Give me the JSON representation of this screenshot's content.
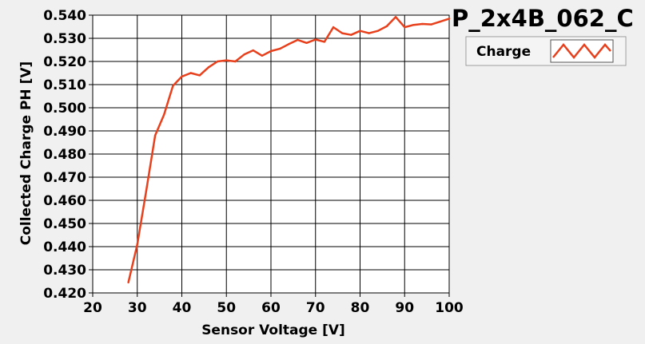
{
  "chart_data": {
    "type": "line",
    "title": "P_2x4B_062_C",
    "xlabel": "Sensor Voltage [V]",
    "ylabel": "Collected Charge PH [V]",
    "xlim": [
      20,
      100
    ],
    "ylim": [
      0.42,
      0.54
    ],
    "xticks": [
      "20",
      "30",
      "40",
      "50",
      "60",
      "70",
      "80",
      "90",
      "100"
    ],
    "yticks": [
      "0.420",
      "0.430",
      "0.440",
      "0.450",
      "0.460",
      "0.470",
      "0.480",
      "0.490",
      "0.500",
      "0.510",
      "0.520",
      "0.530",
      "0.540"
    ],
    "grid": true,
    "legend_position": "top-right",
    "series": [
      {
        "name": "Charge",
        "color": "#e8401c",
        "x": [
          28,
          30,
          32,
          34,
          36,
          38,
          40,
          42,
          44,
          46,
          48,
          50,
          52,
          54,
          56,
          58,
          60,
          62,
          64,
          66,
          68,
          70,
          72,
          74,
          76,
          78,
          80,
          82,
          84,
          86,
          88,
          90,
          92,
          94,
          96,
          98,
          100
        ],
        "y": [
          0.4245,
          0.441,
          0.464,
          0.488,
          0.497,
          0.5095,
          0.5135,
          0.515,
          0.514,
          0.5175,
          0.52,
          0.5205,
          0.52,
          0.523,
          0.5248,
          0.5225,
          0.5245,
          0.5255,
          0.5275,
          0.5293,
          0.528,
          0.5295,
          0.5285,
          0.5348,
          0.5322,
          0.5315,
          0.5332,
          0.5322,
          0.5332,
          0.5352,
          0.5392,
          0.5348,
          0.5358,
          0.5362,
          0.536,
          0.5372,
          0.5385
        ]
      }
    ]
  }
}
